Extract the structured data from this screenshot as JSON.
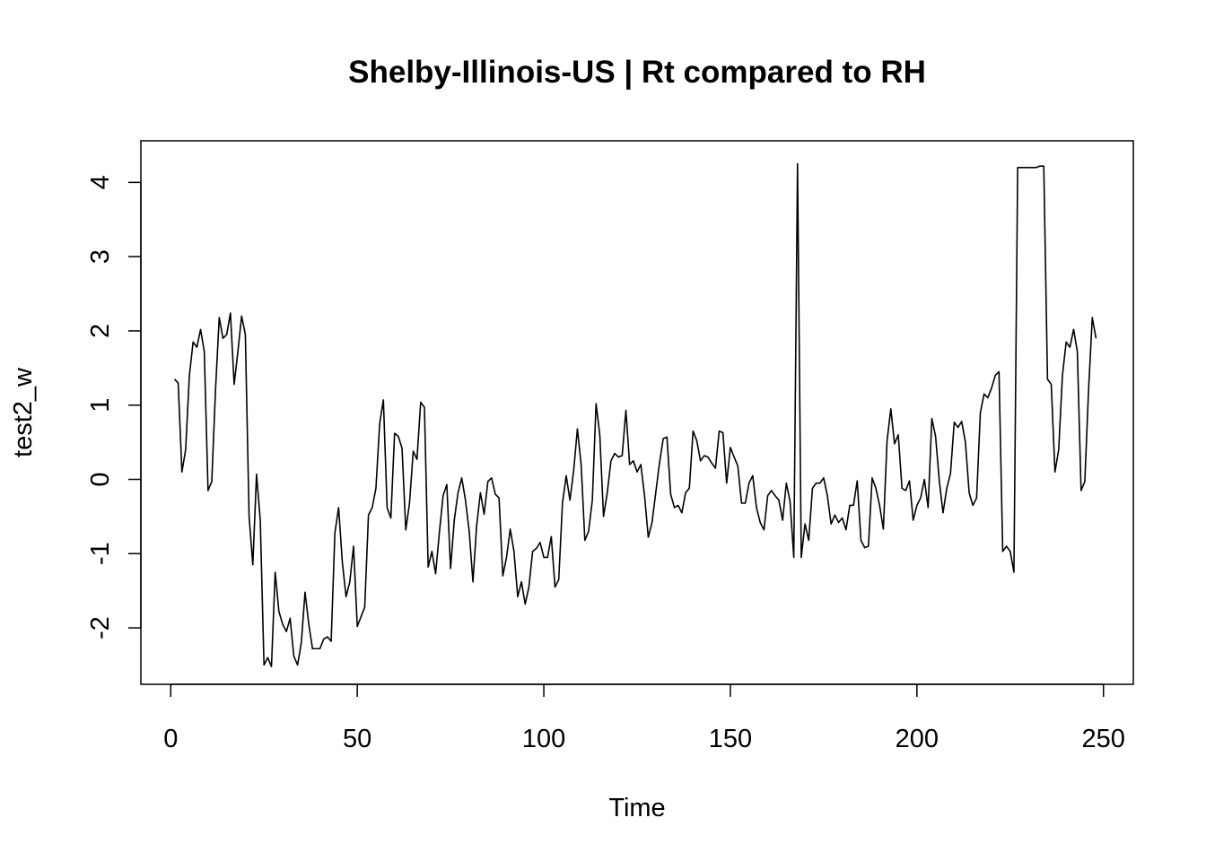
{
  "chart_data": {
    "type": "line",
    "title": "Shelby-Illinois-US | Rt compared to RH",
    "xlabel": "Time",
    "ylabel": "test2_w",
    "xlim": [
      -8,
      258
    ],
    "ylim": [
      -2.76,
      4.56
    ],
    "x_ticks": [
      0,
      50,
      100,
      150,
      200,
      250
    ],
    "y_ticks": [
      -2,
      -1,
      0,
      1,
      2,
      3,
      4
    ],
    "grid": false,
    "legend": "none",
    "line_color": "#000000",
    "series": [
      {
        "x": [
          1,
          2,
          3,
          4,
          5,
          6,
          7,
          8,
          9,
          10,
          11,
          12,
          13,
          14,
          15,
          16,
          17,
          18,
          19,
          20,
          21,
          22,
          23,
          24,
          25,
          26,
          27,
          28,
          29,
          30,
          31,
          32,
          33,
          34,
          35,
          36,
          37,
          38,
          39,
          40,
          41,
          42,
          43,
          44,
          45,
          46,
          47,
          48,
          49,
          50,
          51,
          52,
          53,
          54,
          55,
          56,
          57,
          58,
          59,
          60,
          61,
          62,
          63,
          64,
          65,
          66,
          67,
          68,
          69,
          70,
          71,
          72,
          73,
          74,
          75,
          76,
          77,
          78,
          79,
          80,
          81,
          82,
          83,
          84,
          85,
          86,
          87,
          88,
          89,
          90,
          91,
          92,
          93,
          94,
          95,
          96,
          97,
          98,
          99,
          100,
          101,
          102,
          103,
          104,
          105,
          106,
          107,
          108,
          109,
          110,
          111,
          112,
          113,
          114,
          115,
          116,
          117,
          118,
          119,
          120,
          121,
          122,
          123,
          124,
          125,
          126,
          127,
          128,
          129,
          130,
          131,
          132,
          133,
          134,
          135,
          136,
          137,
          138,
          139,
          140,
          141,
          142,
          143,
          144,
          145,
          146,
          147,
          148,
          149,
          150,
          151,
          152,
          153,
          154,
          155,
          156,
          157,
          158,
          159,
          160,
          161,
          162,
          163,
          164,
          165,
          166,
          167,
          168,
          169,
          170,
          171,
          172,
          173,
          174,
          175,
          176,
          177,
          178,
          179,
          180,
          181,
          182,
          183,
          184,
          185,
          186,
          187,
          188,
          189,
          190,
          191,
          192,
          193,
          194,
          195,
          196,
          197,
          198,
          199,
          200,
          201,
          202,
          203,
          204,
          205,
          206,
          207,
          208,
          209,
          210,
          211,
          212,
          213,
          214,
          215,
          216,
          217,
          218,
          219,
          220,
          221,
          222,
          223,
          224,
          225,
          226,
          227,
          228,
          229,
          230,
          231,
          232,
          233,
          234,
          235,
          236,
          237,
          238,
          239,
          240,
          241,
          242,
          243,
          244,
          245,
          246,
          247,
          248
        ],
        "y": [
          1.35,
          1.3,
          0.1,
          0.4,
          1.4,
          1.85,
          1.78,
          2.02,
          1.72,
          -0.15,
          -0.03,
          1.2,
          2.18,
          1.9,
          1.95,
          2.24,
          1.28,
          1.72,
          2.2,
          1.95,
          -0.5,
          -1.15,
          0.07,
          -0.55,
          -2.5,
          -2.4,
          -2.52,
          -1.25,
          -1.78,
          -1.95,
          -2.05,
          -1.87,
          -2.38,
          -2.5,
          -2.2,
          -1.52,
          -1.95,
          -2.28,
          -2.28,
          -2.28,
          -2.15,
          -2.12,
          -2.18,
          -0.72,
          -0.38,
          -1.12,
          -1.58,
          -1.38,
          -0.9,
          -1.98,
          -1.85,
          -1.72,
          -0.48,
          -0.38,
          -0.12,
          0.75,
          1.07,
          -0.38,
          -0.52,
          0.62,
          0.58,
          0.42,
          -0.68,
          -0.32,
          0.38,
          0.27,
          1.04,
          0.97,
          -1.18,
          -0.97,
          -1.27,
          -0.72,
          -0.22,
          -0.07,
          -1.2,
          -0.55,
          -0.18,
          0.02,
          -0.28,
          -0.7,
          -1.38,
          -0.62,
          -0.18,
          -0.47,
          -0.03,
          0.02,
          -0.2,
          -0.25,
          -1.3,
          -1.05,
          -0.67,
          -0.97,
          -1.58,
          -1.38,
          -1.68,
          -1.45,
          -0.97,
          -0.93,
          -0.85,
          -1.05,
          -1.05,
          -0.77,
          -1.45,
          -1.35,
          -0.32,
          0.05,
          -0.28,
          0.12,
          0.68,
          0.2,
          -0.82,
          -0.7,
          -0.28,
          1.02,
          0.6,
          -0.5,
          -0.18,
          0.25,
          0.35,
          0.3,
          0.32,
          0.93,
          0.2,
          0.25,
          0.1,
          0.2,
          -0.22,
          -0.78,
          -0.58,
          -0.18,
          0.22,
          0.55,
          0.57,
          -0.2,
          -0.38,
          -0.35,
          -0.45,
          -0.18,
          -0.12,
          0.65,
          0.52,
          0.25,
          0.32,
          0.3,
          0.22,
          0.15,
          0.65,
          0.63,
          -0.05,
          0.43,
          0.3,
          0.18,
          -0.32,
          -0.32,
          -0.05,
          0.05,
          -0.38,
          -0.58,
          -0.68,
          -0.22,
          -0.15,
          -0.22,
          -0.28,
          -0.55,
          -0.05,
          -0.3,
          -1.05,
          4.25,
          -1.05,
          -0.6,
          -0.82,
          -0.12,
          -0.05,
          -0.05,
          0.02,
          -0.22,
          -0.6,
          -0.48,
          -0.58,
          -0.52,
          -0.68,
          -0.35,
          -0.35,
          -0.02,
          -0.82,
          -0.92,
          -0.9,
          0.02,
          -0.12,
          -0.35,
          -0.67,
          0.52,
          0.95,
          0.48,
          0.6,
          -0.12,
          -0.15,
          -0.02,
          -0.55,
          -0.35,
          -0.25,
          0.0,
          -0.38,
          0.82,
          0.58,
          -0.02,
          -0.45,
          -0.12,
          0.08,
          0.77,
          0.7,
          0.78,
          0.5,
          -0.18,
          -0.35,
          -0.25,
          0.9,
          1.15,
          1.1,
          1.23,
          1.4,
          1.45,
          -0.97,
          -0.9,
          -0.97,
          -1.25,
          4.2,
          4.2,
          4.2,
          4.2,
          4.2,
          4.2,
          4.22,
          4.22,
          1.35,
          1.28,
          0.1,
          0.4,
          1.4,
          1.85,
          1.78,
          2.02,
          1.72,
          -0.15,
          -0.03,
          1.2,
          2.18,
          1.9
        ]
      }
    ]
  }
}
